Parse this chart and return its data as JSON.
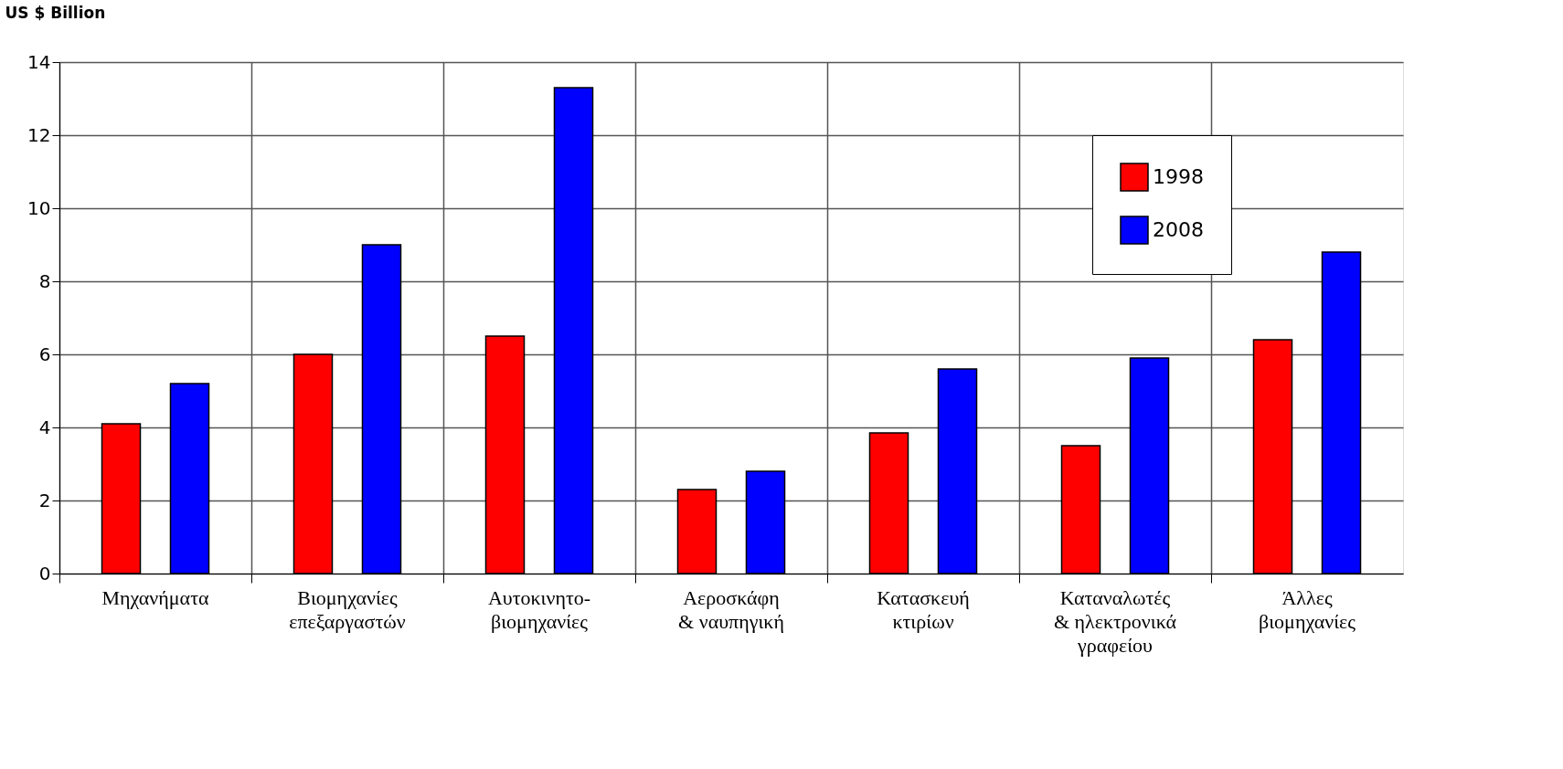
{
  "chart_data": {
    "type": "bar",
    "ylabel": "US $ Billion",
    "categories": [
      "Μηχανήματα",
      "Βιομηχανίες επεξαργαστών",
      "Αυτοκινητο- βιομηχανίες",
      "Αεροσκάφη & ναυπηγική",
      "Κατασκευή κτιρίων",
      "Καταναλωτές & ηλεκτρονικά γραφείου",
      "Άλλες βιομηχανίες"
    ],
    "series": [
      {
        "name": "1998",
        "color": "#ff0000",
        "values": [
          4.1,
          6.0,
          6.5,
          2.3,
          3.85,
          3.5,
          6.4
        ]
      },
      {
        "name": "2008",
        "color": "#0000ff",
        "values": [
          5.2,
          9.0,
          13.3,
          2.8,
          5.6,
          5.9,
          8.8
        ]
      }
    ],
    "ylim": [
      0,
      14
    ],
    "yticks": [
      0,
      2,
      4,
      6,
      8,
      10,
      12,
      14
    ],
    "grid": true,
    "legend": "top right"
  }
}
